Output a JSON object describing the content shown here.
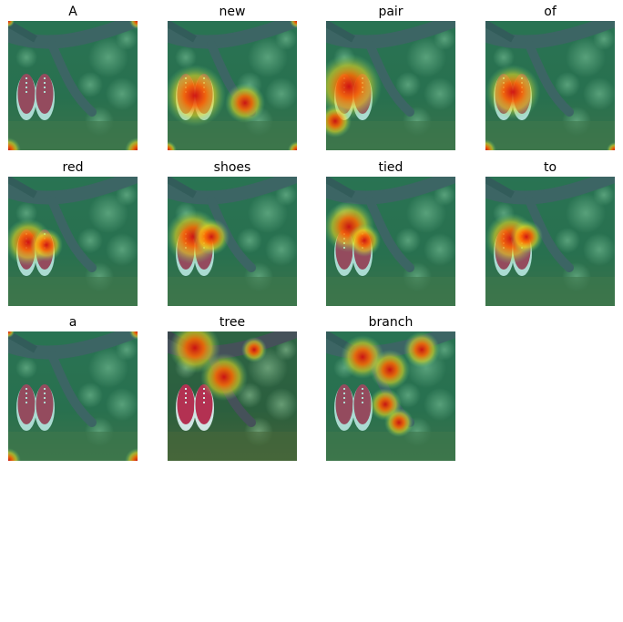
{
  "panels": [
    {
      "title": "A"
    },
    {
      "title": "new"
    },
    {
      "title": "pair"
    },
    {
      "title": "of"
    },
    {
      "title": "red"
    },
    {
      "title": "shoes"
    },
    {
      "title": "tied"
    },
    {
      "title": "to"
    },
    {
      "title": "a"
    },
    {
      "title": "tree"
    },
    {
      "title": "branch"
    }
  ]
}
